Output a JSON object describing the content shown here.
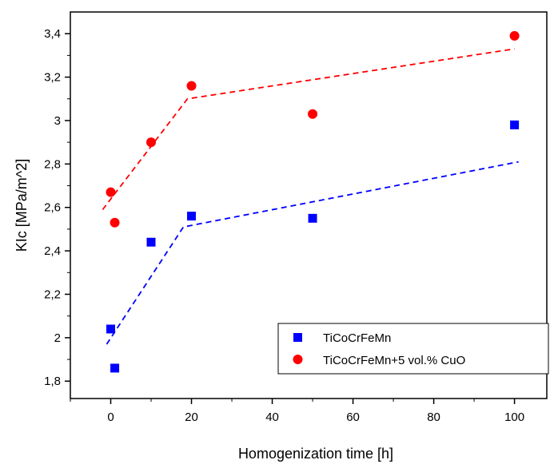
{
  "chart_data": {
    "type": "scatter",
    "title": "",
    "xlabel": "Homogenization time [h]",
    "ylabel": "KIc [MPa/m^2]",
    "xlim": [
      -10,
      108
    ],
    "ylim": [
      1.72,
      3.5
    ],
    "xticks": [
      0,
      20,
      40,
      60,
      80,
      100
    ],
    "xtick_labels": [
      "0",
      "20",
      "40",
      "60",
      "80",
      "100"
    ],
    "yticks": [
      1.8,
      2.0,
      2.2,
      2.4,
      2.6,
      2.8,
      3.0,
      3.2,
      3.4
    ],
    "ytick_labels": [
      "1,8",
      "2",
      "2,2",
      "2,4",
      "2,6",
      "2,8",
      "3",
      "3,2",
      "3,4"
    ],
    "grid": false,
    "legend_position": "bottom-right",
    "series": [
      {
        "name": "TiCoCrFeMn",
        "marker": "square",
        "color": "#0000ff",
        "x": [
          0,
          1,
          10,
          20,
          50,
          100
        ],
        "y": [
          2.04,
          1.86,
          2.44,
          2.56,
          2.55,
          2.98
        ],
        "trend": {
          "x": [
            -1,
            18,
            101
          ],
          "y": [
            1.97,
            2.51,
            2.81
          ]
        }
      },
      {
        "name": "TiCoCrFeMn+5 vol.% CuO",
        "marker": "circle",
        "color": "#ff0000",
        "x": [
          0,
          1,
          10,
          20,
          50,
          100
        ],
        "y": [
          2.67,
          2.53,
          2.9,
          3.16,
          3.03,
          3.39
        ],
        "trend": {
          "x": [
            -2,
            19,
            100
          ],
          "y": [
            2.59,
            3.1,
            3.33
          ]
        }
      }
    ]
  }
}
